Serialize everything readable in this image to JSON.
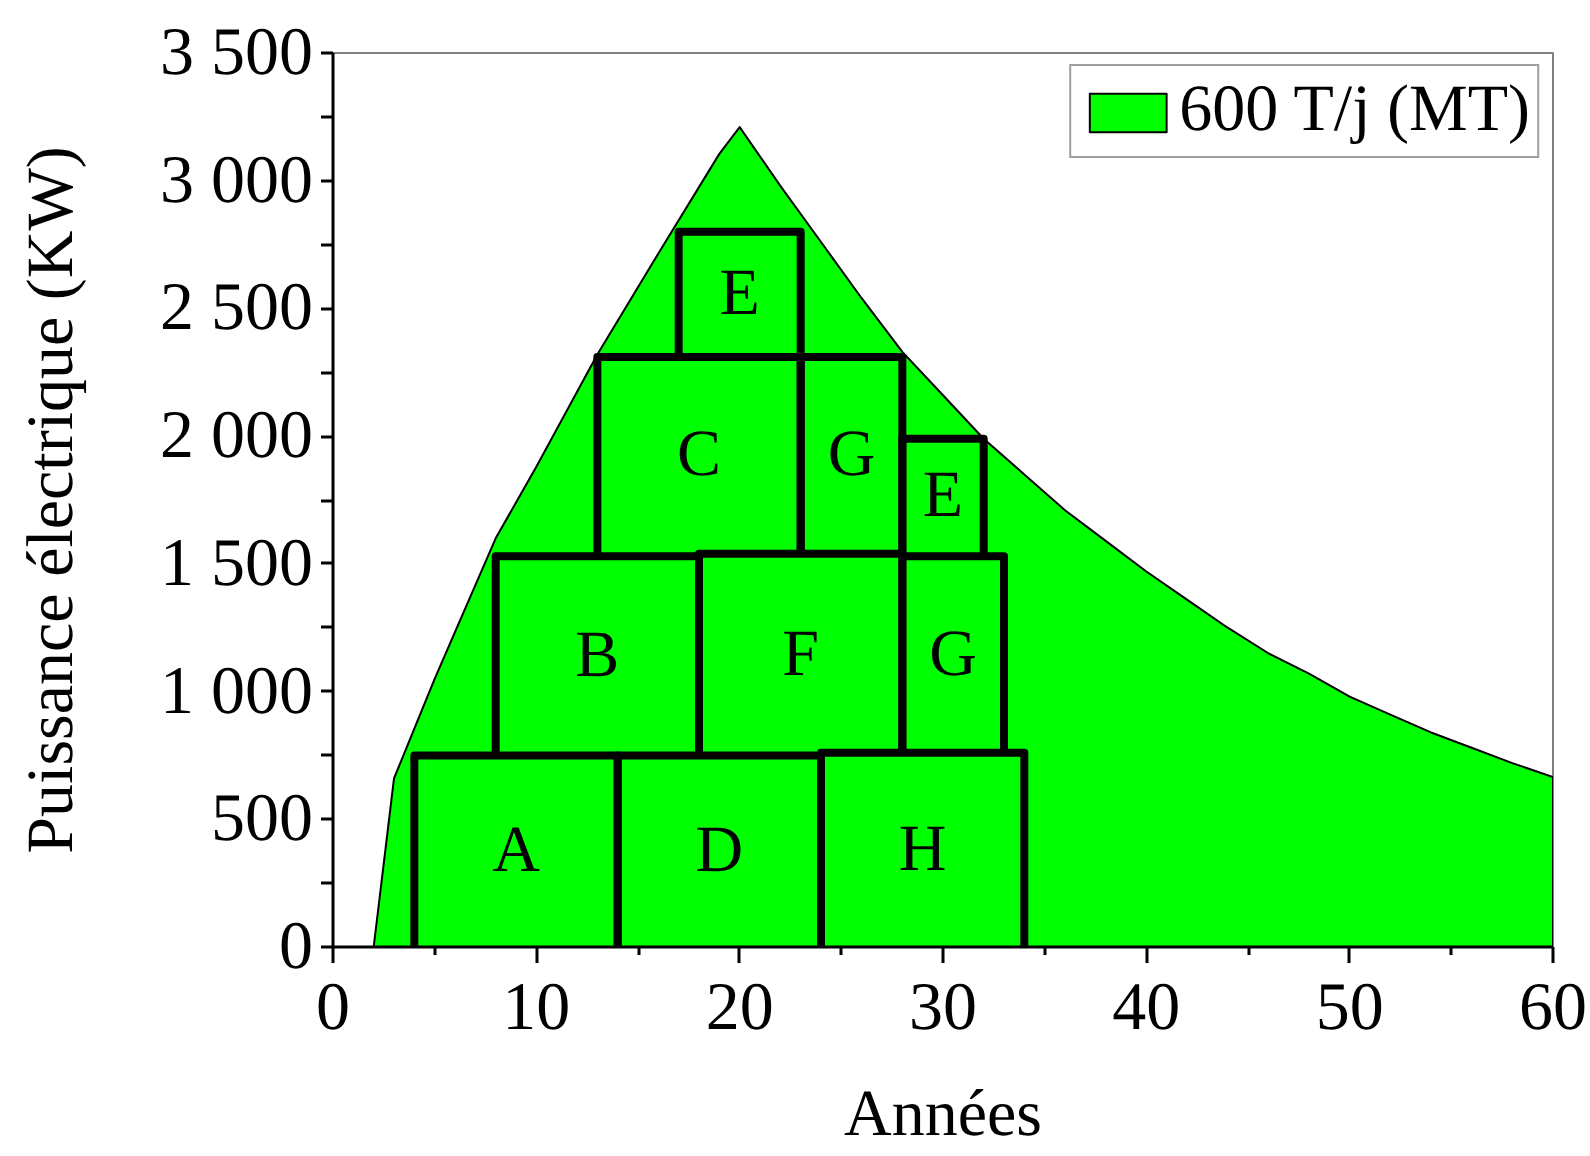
{
  "chart_data": {
    "type": "area",
    "xlabel": "Années",
    "ylabel": "Puissance électrique (KW)",
    "xlim": [
      0,
      60
    ],
    "ylim": [
      0,
      3500
    ],
    "xticks": [
      0,
      {
        "value": 5,
        "label": null
      },
      10,
      {
        "value": 15,
        "label": null
      },
      20,
      {
        "value": 25,
        "label": null
      },
      30,
      {
        "value": 35,
        "label": null
      },
      40,
      {
        "value": 45,
        "label": null
      },
      50,
      {
        "value": 55,
        "label": null
      },
      60
    ],
    "yticks": [
      0,
      {
        "value": 250,
        "label": null
      },
      500,
      {
        "value": 750,
        "label": null
      },
      {
        "value": 1000,
        "label": "1 000"
      },
      {
        "value": 1250,
        "label": null
      },
      {
        "value": 1500,
        "label": "1 500"
      },
      {
        "value": 1750,
        "label": null
      },
      {
        "value": 2000,
        "label": "2 000"
      },
      {
        "value": 2250,
        "label": null
      },
      {
        "value": 2500,
        "label": "2 500"
      },
      {
        "value": 2750,
        "label": null
      },
      {
        "value": 3000,
        "label": "3 000"
      },
      {
        "value": 3250,
        "label": null
      },
      {
        "value": 3500,
        "label": "3 500"
      }
    ],
    "grid": false,
    "legend": "top right",
    "series": [
      {
        "name": "600 T/j (MT)",
        "color": "#00ff00",
        "x": [
          0,
          2,
          3,
          5,
          8,
          10,
          13,
          16,
          19,
          20,
          22,
          24,
          26,
          28,
          30,
          32,
          34,
          36,
          38,
          40,
          42,
          44,
          46,
          48,
          50,
          52,
          54,
          56,
          58,
          60
        ],
        "values": [
          0,
          0,
          660,
          1050,
          1600,
          1880,
          2320,
          2715,
          3105,
          3210,
          2980,
          2760,
          2540,
          2330,
          2160,
          1990,
          1850,
          1710,
          1590,
          1470,
          1360,
          1250,
          1150,
          1070,
          980,
          910,
          840,
          780,
          720,
          665
        ]
      },
      {
        "type": "line",
        "name": "A",
        "color": "#000000",
        "x": [
          4,
          4,
          14,
          14
        ],
        "values": [
          0,
          750,
          750,
          0
        ]
      },
      {
        "type": "line",
        "name": "D",
        "color": "#000000",
        "x": [
          14,
          14,
          24,
          24
        ],
        "values": [
          0,
          750,
          750,
          0
        ]
      },
      {
        "type": "line",
        "name": "H",
        "color": "#000000",
        "x": [
          24,
          24,
          34,
          34
        ],
        "values": [
          0,
          760,
          760,
          0
        ]
      },
      {
        "type": "line",
        "name": "B",
        "color": "#000000",
        "x": [
          8,
          8,
          18,
          18
        ],
        "values": [
          750,
          1530,
          1530,
          750
        ]
      },
      {
        "type": "line",
        "name": "F",
        "color": "#000000",
        "x": [
          18,
          18,
          28,
          28
        ],
        "values": [
          750,
          1540,
          1540,
          750
        ]
      },
      {
        "type": "line",
        "name": "G",
        "color": "#000000",
        "x": [
          28,
          28,
          33,
          33
        ],
        "values": [
          760,
          1530,
          1530,
          760
        ]
      },
      {
        "type": "line",
        "name": "C",
        "color": "#000000",
        "x": [
          13,
          13,
          23,
          23
        ],
        "values": [
          1540,
          2310,
          2310,
          1540
        ]
      },
      {
        "type": "line",
        "name": "G",
        "color": "#000000",
        "x": [
          23,
          23,
          28,
          28
        ],
        "values": [
          1540,
          2310,
          2310,
          1540
        ]
      },
      {
        "type": "line",
        "name": "E",
        "color": "#000000",
        "x": [
          28,
          28,
          32,
          32
        ],
        "values": [
          1540,
          1990,
          1990,
          1540
        ]
      },
      {
        "type": "line",
        "name": "E",
        "color": "#000000",
        "x": [
          17,
          17,
          23,
          23
        ],
        "values": [
          2310,
          2800,
          2800,
          2310
        ]
      }
    ]
  }
}
